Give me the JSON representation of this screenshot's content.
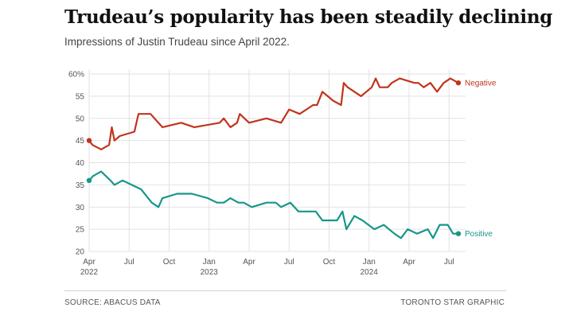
{
  "header": {
    "title": "Trudeau’s popularity has been steadily declining",
    "subtitle": "Impressions of Justin Trudeau since April 2022."
  },
  "footer": {
    "source": "SOURCE: ABACUS DATA",
    "credit": "TORONTO STAR GRAPHIC"
  },
  "colors": {
    "negative": "#c0341d",
    "positive": "#17968a",
    "grid": "#e2e2e2"
  },
  "chart_data": {
    "type": "line",
    "title": "Trudeau’s popularity has been steadily declining",
    "subtitle": "Impressions of Justin Trudeau since April 2022.",
    "xlabel": "",
    "ylabel": "",
    "x_unit": "months since Apr 2022",
    "xlim": [
      0,
      28
    ],
    "ylim": [
      20,
      60
    ],
    "y_ticks": [
      20,
      25,
      30,
      35,
      40,
      45,
      50,
      55,
      60
    ],
    "y_tick_labels": [
      "20",
      "25",
      "30",
      "35",
      "40",
      "45",
      "50",
      "55",
      "60%"
    ],
    "x_ticks": [
      {
        "x": 0,
        "label": "Apr",
        "year": "2022"
      },
      {
        "x": 3,
        "label": "Jul",
        "year": ""
      },
      {
        "x": 6,
        "label": "Oct",
        "year": ""
      },
      {
        "x": 9,
        "label": "Jan",
        "year": "2023"
      },
      {
        "x": 12,
        "label": "Apr",
        "year": ""
      },
      {
        "x": 15,
        "label": "Jul",
        "year": ""
      },
      {
        "x": 18,
        "label": "Oct",
        "year": ""
      },
      {
        "x": 21,
        "label": "Jan",
        "year": "2024"
      },
      {
        "x": 24,
        "label": "Apr",
        "year": ""
      },
      {
        "x": 27,
        "label": "Jul",
        "year": ""
      }
    ],
    "grid": true,
    "legend": "end-of-line labels",
    "series": [
      {
        "name": "Negative",
        "color": "#c0341d",
        "x": [
          0,
          0.25,
          0.9,
          1.5,
          1.7,
          1.9,
          2.3,
          3.4,
          3.7,
          4.6,
          5.5,
          6.9,
          7.9,
          9.8,
          10.1,
          10.6,
          11.1,
          11.3,
          12.0,
          13.3,
          14.4,
          15.0,
          15.8,
          16.8,
          17.1,
          17.5,
          17.9,
          18.3,
          18.9,
          19.1,
          19.4,
          20.4,
          21.2,
          21.5,
          21.8,
          22.4,
          22.7,
          23.3,
          24.4,
          24.7,
          25.1,
          25.6,
          26.1,
          26.6,
          27.1,
          27.7
        ],
        "values": [
          45,
          44,
          43,
          44,
          48,
          45,
          46,
          47,
          51,
          51,
          48,
          49,
          48,
          49,
          50,
          48,
          49,
          51,
          49,
          50,
          49,
          52,
          51,
          53,
          53,
          56,
          55,
          54,
          53,
          58,
          57,
          55,
          57,
          59,
          57,
          57,
          58,
          59,
          58,
          58,
          57,
          58,
          56,
          58,
          59,
          58
        ]
      },
      {
        "name": "Positive",
        "color": "#17968a",
        "x": [
          0,
          0.3,
          0.9,
          1.6,
          1.9,
          2.5,
          3.2,
          3.9,
          4.7,
          5.2,
          5.5,
          6.6,
          7.7,
          8.9,
          9.6,
          10.1,
          10.6,
          11.2,
          11.6,
          12.2,
          13.3,
          14.0,
          14.4,
          15.1,
          15.7,
          16.9,
          17.0,
          17.5,
          18.2,
          18.6,
          19.0,
          19.3,
          19.9,
          20.5,
          21.4,
          22.1,
          22.9,
          23.4,
          23.9,
          24.6,
          25.4,
          25.8,
          26.3,
          26.6,
          26.9,
          27.3,
          27.7
        ],
        "values": [
          36,
          37,
          38,
          36,
          35,
          36,
          35,
          34,
          31,
          30,
          32,
          33,
          33,
          32,
          31,
          31,
          32,
          31,
          31,
          30,
          31,
          31,
          30,
          31,
          29,
          29,
          29,
          27,
          27,
          27,
          29,
          25,
          28,
          27,
          25,
          26,
          24,
          23,
          25,
          24,
          25,
          23,
          26,
          26,
          26,
          24,
          24
        ]
      }
    ]
  }
}
